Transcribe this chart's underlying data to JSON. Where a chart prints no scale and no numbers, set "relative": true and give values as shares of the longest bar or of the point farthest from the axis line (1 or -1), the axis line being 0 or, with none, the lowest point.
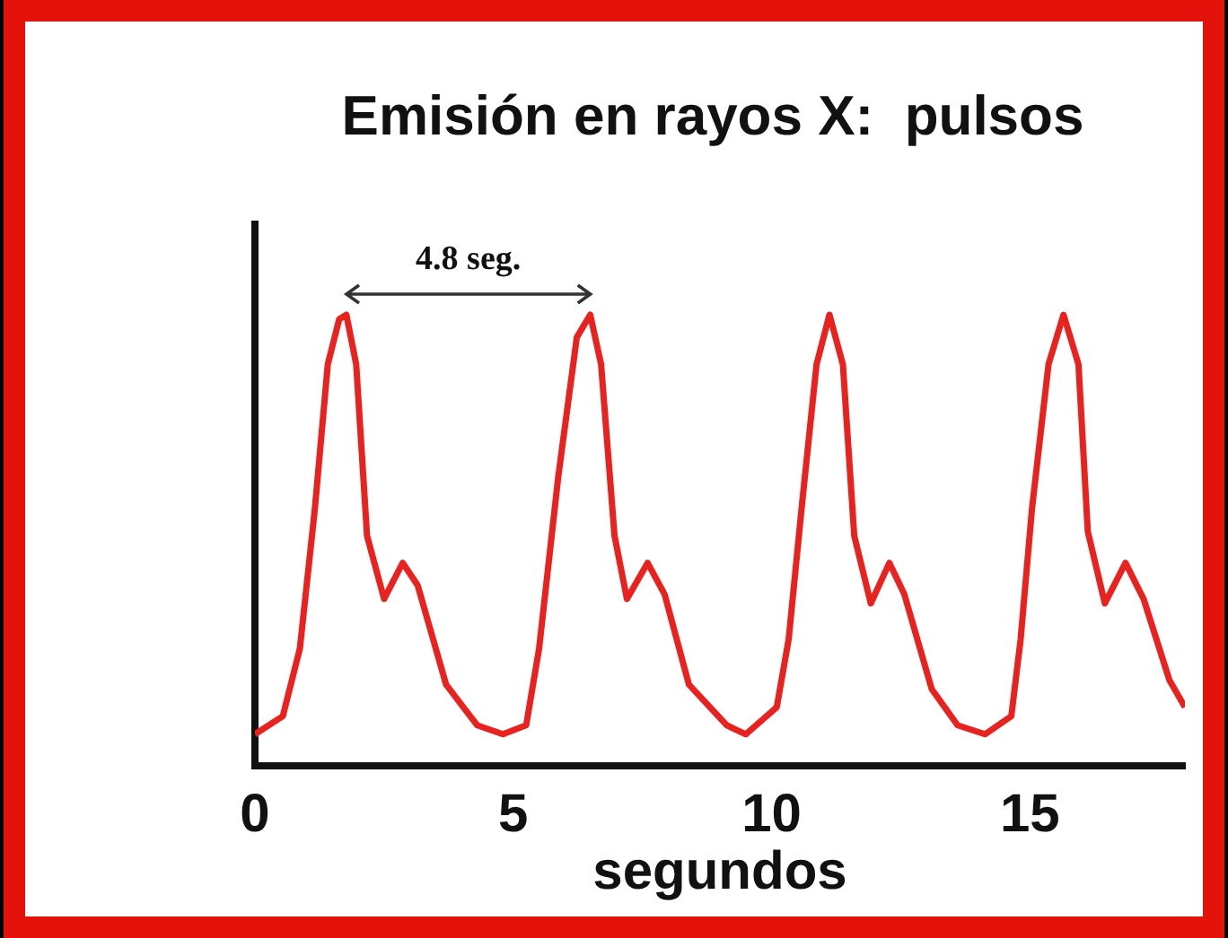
{
  "chart_data": {
    "type": "line",
    "title": "Emisión en rayos X:  pulsos",
    "xlabel": "segundos",
    "relative": true,
    "xlim": [
      0,
      18
    ],
    "xticks": [
      0,
      5,
      10,
      15
    ],
    "grid": false,
    "legend": false,
    "marker": "none",
    "line_style": "solid",
    "annotations": [
      "4.8 seg."
    ],
    "series": [
      {
        "color": "#e8221e",
        "x": [
          0,
          0.54,
          0.87,
          1.16,
          1.41,
          1.63,
          1.77,
          1.96,
          2.17,
          2.5,
          2.86,
          3.15,
          3.7,
          4.3,
          4.8,
          5.25,
          5.5,
          5.87,
          6.23,
          6.49,
          6.7,
          6.96,
          7.2,
          7.6,
          7.93,
          8.4,
          9.13,
          9.5,
          10.1,
          10.33,
          10.58,
          10.87,
          11.12,
          11.38,
          11.6,
          11.92,
          12.28,
          12.57,
          13.1,
          13.6,
          14.13,
          14.64,
          14.82,
          15.04,
          15.36,
          15.65,
          15.94,
          16.12,
          16.45,
          16.85,
          17.2,
          17.7,
          18
        ],
        "values": [
          0.07,
          0.11,
          0.26,
          0.57,
          0.89,
          0.99,
          1,
          0.89,
          0.51,
          0.37,
          0.45,
          0.4,
          0.18,
          0.09,
          0.07,
          0.09,
          0.26,
          0.64,
          0.95,
          1,
          0.89,
          0.51,
          0.37,
          0.45,
          0.38,
          0.18,
          0.09,
          0.07,
          0.13,
          0.28,
          0.57,
          0.89,
          1,
          0.89,
          0.51,
          0.36,
          0.45,
          0.38,
          0.17,
          0.09,
          0.07,
          0.11,
          0.28,
          0.57,
          0.89,
          1,
          0.89,
          0.52,
          0.36,
          0.45,
          0.37,
          0.19,
          0.13
        ]
      }
    ]
  }
}
